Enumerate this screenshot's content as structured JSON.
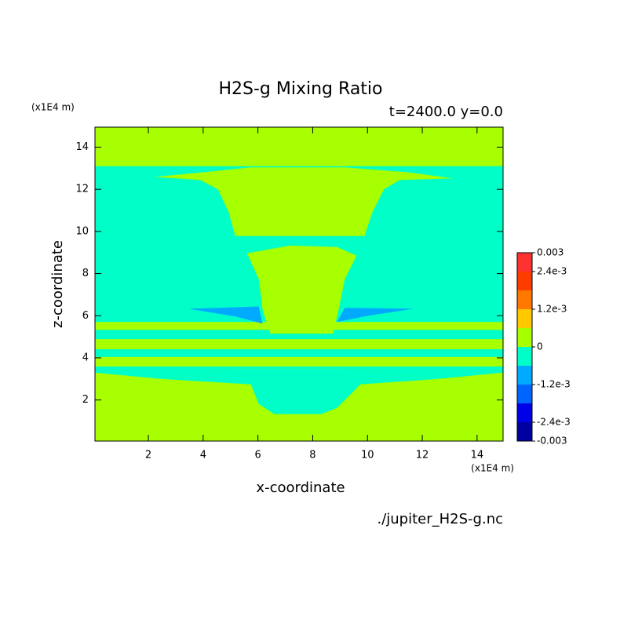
{
  "chart_data": {
    "type": "contourf",
    "title": "H2S-g Mixing Ratio",
    "subtitle": "t=2400.0 y=0.0",
    "xlabel": "x-coordinate",
    "ylabel": "z-coordinate",
    "xunit": "(x1E4 m)",
    "yunit": "(x1E4 m)",
    "source": "./jupiter_H2S-g.nc",
    "xlim": [
      0.05,
      14.95
    ],
    "ylim": [
      0.05,
      14.95
    ],
    "xticks": [
      2,
      4,
      6,
      8,
      10,
      12,
      14
    ],
    "yticks": [
      2,
      4,
      6,
      8,
      10,
      12,
      14
    ],
    "colorbar": {
      "levels": [
        -0.003,
        -0.0024,
        -0.0018,
        -0.0012,
        -0.0006,
        0,
        0.0006,
        0.0012,
        0.0018,
        0.0024,
        0.003
      ],
      "colors": [
        "#0000a0",
        "#0000e6",
        "#0064ff",
        "#00aaff",
        "#00ffc8",
        "#a8ff00",
        "#ffc800",
        "#ff7800",
        "#ff3c00",
        "#ff3232"
      ],
      "ticks": [
        -0.003,
        {
          "value": -0.0024,
          "label": "-2.4e-3"
        },
        {
          "value": -0.0012,
          "label": "-1.2e-3"
        },
        0,
        {
          "value": 0.0012,
          "label": "1.2e-3"
        },
        {
          "value": 0.0024,
          "label": "2.4e-3"
        },
        0.003
      ]
    },
    "regions": [
      {
        "value": 0.0003,
        "polygon": [
          [
            0.05,
            0.05
          ],
          [
            14.95,
            0.05
          ],
          [
            14.95,
            14.95
          ],
          [
            0.05,
            14.95
          ]
        ]
      },
      {
        "value": -0.0003,
        "polygon": [
          [
            0.05,
            5.7
          ],
          [
            14.95,
            5.7
          ],
          [
            14.95,
            13.1
          ],
          [
            0.05,
            13.1
          ]
        ]
      },
      {
        "value": 0.0003,
        "polygon": [
          [
            2.23,
            12.59
          ],
          [
            4.03,
            12.81
          ],
          [
            5.74,
            13.04
          ],
          [
            9.17,
            13.04
          ],
          [
            11.46,
            12.81
          ],
          [
            13.11,
            12.52
          ],
          [
            11.17,
            12.44
          ],
          [
            10.6,
            12.0
          ],
          [
            10.17,
            10.89
          ],
          [
            9.89,
            9.78
          ],
          [
            5.17,
            9.78
          ],
          [
            4.94,
            10.89
          ],
          [
            4.54,
            12.0
          ],
          [
            3.89,
            12.44
          ]
        ]
      },
      {
        "value": -0.0003,
        "polygon": [
          [
            0.05,
            4.89
          ],
          [
            14.95,
            4.89
          ],
          [
            14.95,
            5.33
          ],
          [
            0.05,
            5.33
          ]
        ]
      },
      {
        "value": -0.0003,
        "polygon": [
          [
            0.05,
            4.04
          ],
          [
            14.95,
            4.04
          ],
          [
            14.95,
            4.41
          ],
          [
            0.05,
            4.41
          ]
        ]
      },
      {
        "value": -0.0003,
        "polygon": [
          [
            2.46,
            3.0
          ],
          [
            5.17,
            3.48
          ],
          [
            9.17,
            3.48
          ],
          [
            12.6,
            3.0
          ],
          [
            14.95,
            3.3
          ],
          [
            14.95,
            3.59
          ],
          [
            0.05,
            3.59
          ],
          [
            0.05,
            3.3
          ]
        ]
      },
      {
        "value": -0.0003,
        "polygon": [
          [
            2.46,
            3.0
          ],
          [
            5.17,
            3.48
          ],
          [
            9.17,
            3.48
          ],
          [
            12.6,
            3.0
          ],
          [
            9.74,
            2.74
          ],
          [
            8.89,
            1.63
          ],
          [
            8.31,
            1.33
          ],
          [
            6.6,
            1.33
          ],
          [
            6.03,
            1.81
          ],
          [
            5.74,
            2.74
          ]
        ]
      },
      {
        "value": 0.0003,
        "polygon": [
          [
            5.6,
            8.96
          ],
          [
            7.17,
            9.33
          ],
          [
            8.89,
            9.26
          ],
          [
            9.6,
            8.85
          ],
          [
            9.17,
            7.74
          ],
          [
            8.94,
            6.26
          ],
          [
            8.74,
            5.15
          ],
          [
            6.46,
            5.15
          ],
          [
            6.17,
            6.26
          ],
          [
            6.03,
            7.74
          ]
        ]
      },
      {
        "value": -0.0009,
        "polygon": [
          [
            3.46,
            6.33
          ],
          [
            6.03,
            6.44
          ],
          [
            6.17,
            5.63
          ],
          [
            5.17,
            5.96
          ]
        ]
      },
      {
        "value": -0.0009,
        "polygon": [
          [
            8.89,
            5.7
          ],
          [
            9.17,
            6.37
          ],
          [
            11.69,
            6.33
          ],
          [
            10.03,
            6.0
          ]
        ]
      }
    ]
  }
}
